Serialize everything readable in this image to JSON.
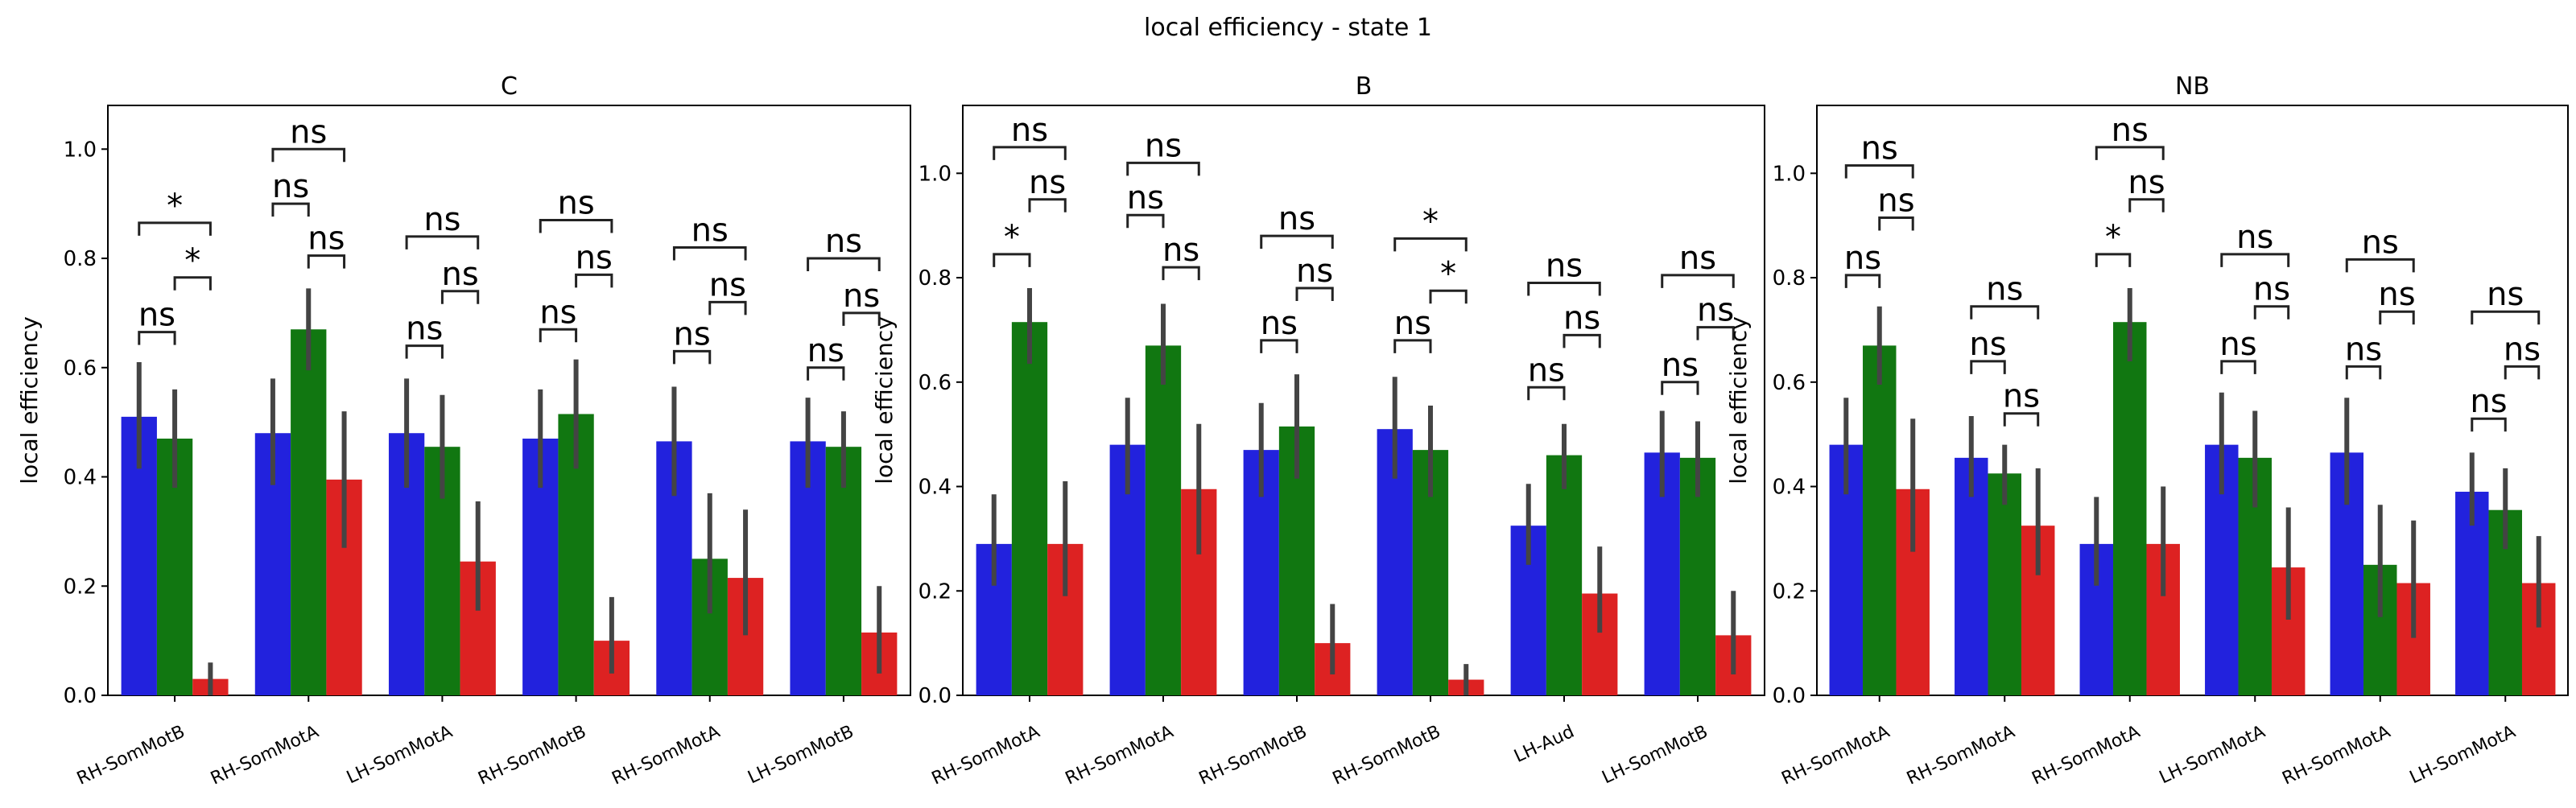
{
  "figure": {
    "title": "local efficiency - state 1"
  },
  "style": {
    "hue_colors": [
      "#2222dd",
      "#117711",
      "#dd2222"
    ],
    "errorbar_color": "#444444",
    "bracket_color": "#222222"
  },
  "chart_data": [
    {
      "type": "bar",
      "title": "C",
      "ylabel": "local efficiency",
      "ylim": [
        0,
        1.08
      ],
      "yticks": [
        0.0,
        0.2,
        0.4,
        0.6,
        0.8,
        1.0
      ],
      "ytick_labels": [
        "0.0",
        "0.2",
        "0.4",
        "0.6",
        "0.8",
        "1.0"
      ],
      "categories": [
        "RH-SomMotB",
        "RH-SomMotA",
        "LH-SomMotA",
        "RH-SomMotB",
        "RH-SomMotA",
        "LH-SomMotB"
      ],
      "values": [
        [
          0.51,
          0.47,
          0.03
        ],
        [
          0.48,
          0.67,
          0.395
        ],
        [
          0.48,
          0.455,
          0.245
        ],
        [
          0.47,
          0.515,
          0.1
        ],
        [
          0.465,
          0.25,
          0.215
        ],
        [
          0.465,
          0.455,
          0.115
        ]
      ],
      "ci_low": [
        [
          0.415,
          0.38,
          0.0
        ],
        [
          0.385,
          0.595,
          0.27
        ],
        [
          0.38,
          0.36,
          0.155
        ],
        [
          0.38,
          0.415,
          0.04
        ],
        [
          0.365,
          0.15,
          0.11
        ],
        [
          0.38,
          0.38,
          0.04
        ]
      ],
      "ci_high": [
        [
          0.61,
          0.56,
          0.06
        ],
        [
          0.58,
          0.745,
          0.52
        ],
        [
          0.58,
          0.55,
          0.355
        ],
        [
          0.56,
          0.615,
          0.18
        ],
        [
          0.565,
          0.37,
          0.34
        ],
        [
          0.545,
          0.52,
          0.2
        ]
      ],
      "annotations": [
        [
          {
            "pair": [
              0,
              1
            ],
            "text": "ns",
            "y": 0.665
          },
          {
            "pair": [
              1,
              2
            ],
            "text": "*",
            "y": 0.765
          },
          {
            "pair": [
              0,
              2
            ],
            "text": "*",
            "y": 0.865
          }
        ],
        [
          {
            "pair": [
              0,
              1
            ],
            "text": "ns",
            "y": 0.9
          },
          {
            "pair": [
              1,
              2
            ],
            "text": "ns",
            "y": 0.805
          },
          {
            "pair": [
              0,
              2
            ],
            "text": "ns",
            "y": 1.0
          }
        ],
        [
          {
            "pair": [
              0,
              1
            ],
            "text": "ns",
            "y": 0.64
          },
          {
            "pair": [
              1,
              2
            ],
            "text": "ns",
            "y": 0.74
          },
          {
            "pair": [
              0,
              2
            ],
            "text": "ns",
            "y": 0.84
          }
        ],
        [
          {
            "pair": [
              0,
              1
            ],
            "text": "ns",
            "y": 0.67
          },
          {
            "pair": [
              1,
              2
            ],
            "text": "ns",
            "y": 0.77
          },
          {
            "pair": [
              0,
              2
            ],
            "text": "ns",
            "y": 0.87
          }
        ],
        [
          {
            "pair": [
              0,
              1
            ],
            "text": "ns",
            "y": 0.63
          },
          {
            "pair": [
              1,
              2
            ],
            "text": "ns",
            "y": 0.72
          },
          {
            "pair": [
              0,
              2
            ],
            "text": "ns",
            "y": 0.82
          }
        ],
        [
          {
            "pair": [
              0,
              1
            ],
            "text": "ns",
            "y": 0.6
          },
          {
            "pair": [
              1,
              2
            ],
            "text": "ns",
            "y": 0.7
          },
          {
            "pair": [
              0,
              2
            ],
            "text": "ns",
            "y": 0.8
          }
        ]
      ]
    },
    {
      "type": "bar",
      "title": "B",
      "ylabel": "local efficiency",
      "ylim": [
        0,
        1.13
      ],
      "yticks": [
        0.0,
        0.2,
        0.4,
        0.6,
        0.8,
        1.0
      ],
      "ytick_labels": [
        "0.0",
        "0.2",
        "0.4",
        "0.6",
        "0.8",
        "1.0"
      ],
      "categories": [
        "RH-SomMotA",
        "RH-SomMotA",
        "RH-SomMotB",
        "RH-SomMotB",
        "LH-Aud",
        "LH-SomMotB"
      ],
      "values": [
        [
          0.29,
          0.715,
          0.29
        ],
        [
          0.48,
          0.67,
          0.395
        ],
        [
          0.47,
          0.515,
          0.1
        ],
        [
          0.51,
          0.47,
          0.03
        ],
        [
          0.325,
          0.46,
          0.195
        ],
        [
          0.465,
          0.455,
          0.115
        ]
      ],
      "ci_low": [
        [
          0.21,
          0.635,
          0.19
        ],
        [
          0.385,
          0.595,
          0.27
        ],
        [
          0.38,
          0.415,
          0.04
        ],
        [
          0.415,
          0.38,
          0.0
        ],
        [
          0.25,
          0.395,
          0.12
        ],
        [
          0.38,
          0.38,
          0.04
        ]
      ],
      "ci_high": [
        [
          0.385,
          0.78,
          0.41
        ],
        [
          0.57,
          0.75,
          0.52
        ],
        [
          0.56,
          0.615,
          0.175
        ],
        [
          0.61,
          0.555,
          0.06
        ],
        [
          0.405,
          0.52,
          0.285
        ],
        [
          0.545,
          0.525,
          0.2
        ]
      ],
      "annotations": [
        [
          {
            "pair": [
              0,
              1
            ],
            "text": "*",
            "y": 0.845
          },
          {
            "pair": [
              1,
              2
            ],
            "text": "ns",
            "y": 0.95
          },
          {
            "pair": [
              0,
              2
            ],
            "text": "ns",
            "y": 1.05
          }
        ],
        [
          {
            "pair": [
              0,
              1
            ],
            "text": "ns",
            "y": 0.92
          },
          {
            "pair": [
              1,
              2
            ],
            "text": "ns",
            "y": 0.82
          },
          {
            "pair": [
              0,
              2
            ],
            "text": "ns",
            "y": 1.02
          }
        ],
        [
          {
            "pair": [
              0,
              1
            ],
            "text": "ns",
            "y": 0.68
          },
          {
            "pair": [
              1,
              2
            ],
            "text": "ns",
            "y": 0.78
          },
          {
            "pair": [
              0,
              2
            ],
            "text": "ns",
            "y": 0.88
          }
        ],
        [
          {
            "pair": [
              0,
              1
            ],
            "text": "ns",
            "y": 0.68
          },
          {
            "pair": [
              1,
              2
            ],
            "text": "*",
            "y": 0.775
          },
          {
            "pair": [
              0,
              2
            ],
            "text": "*",
            "y": 0.875
          }
        ],
        [
          {
            "pair": [
              0,
              1
            ],
            "text": "ns",
            "y": 0.59
          },
          {
            "pair": [
              1,
              2
            ],
            "text": "ns",
            "y": 0.69
          },
          {
            "pair": [
              0,
              2
            ],
            "text": "ns",
            "y": 0.79
          }
        ],
        [
          {
            "pair": [
              0,
              1
            ],
            "text": "ns",
            "y": 0.6
          },
          {
            "pair": [
              1,
              2
            ],
            "text": "ns",
            "y": 0.705
          },
          {
            "pair": [
              0,
              2
            ],
            "text": "ns",
            "y": 0.805
          }
        ]
      ]
    },
    {
      "type": "bar",
      "title": "NB",
      "ylabel": "local efficiency",
      "ylim": [
        0,
        1.13
      ],
      "yticks": [
        0.0,
        0.2,
        0.4,
        0.6,
        0.8,
        1.0
      ],
      "ytick_labels": [
        "0.0",
        "0.2",
        "0.4",
        "0.6",
        "0.8",
        "1.0"
      ],
      "categories": [
        "RH-SomMotA",
        "RH-SomMotA",
        "RH-SomMotA",
        "LH-SomMotA",
        "RH-SomMotA",
        "LH-SomMotA"
      ],
      "values": [
        [
          0.48,
          0.67,
          0.395
        ],
        [
          0.455,
          0.425,
          0.325
        ],
        [
          0.29,
          0.715,
          0.29
        ],
        [
          0.48,
          0.455,
          0.245
        ],
        [
          0.465,
          0.25,
          0.215
        ],
        [
          0.39,
          0.355,
          0.215
        ]
      ],
      "ci_low": [
        [
          0.385,
          0.595,
          0.275
        ],
        [
          0.38,
          0.365,
          0.23
        ],
        [
          0.21,
          0.64,
          0.19
        ],
        [
          0.385,
          0.36,
          0.145
        ],
        [
          0.365,
          0.15,
          0.11
        ],
        [
          0.325,
          0.28,
          0.13
        ]
      ],
      "ci_high": [
        [
          0.57,
          0.745,
          0.53
        ],
        [
          0.535,
          0.48,
          0.435
        ],
        [
          0.38,
          0.78,
          0.4
        ],
        [
          0.58,
          0.545,
          0.36
        ],
        [
          0.57,
          0.365,
          0.335
        ],
        [
          0.465,
          0.435,
          0.305
        ]
      ],
      "annotations": [
        [
          {
            "pair": [
              0,
              1
            ],
            "text": "ns",
            "y": 0.805
          },
          {
            "pair": [
              1,
              2
            ],
            "text": "ns",
            "y": 0.915
          },
          {
            "pair": [
              0,
              2
            ],
            "text": "ns",
            "y": 1.015
          }
        ],
        [
          {
            "pair": [
              0,
              1
            ],
            "text": "ns",
            "y": 0.64
          },
          {
            "pair": [
              1,
              2
            ],
            "text": "ns",
            "y": 0.54
          },
          {
            "pair": [
              0,
              2
            ],
            "text": "ns",
            "y": 0.745
          }
        ],
        [
          {
            "pair": [
              0,
              1
            ],
            "text": "*",
            "y": 0.845
          },
          {
            "pair": [
              1,
              2
            ],
            "text": "ns",
            "y": 0.95
          },
          {
            "pair": [
              0,
              2
            ],
            "text": "ns",
            "y": 1.05
          }
        ],
        [
          {
            "pair": [
              0,
              1
            ],
            "text": "ns",
            "y": 0.64
          },
          {
            "pair": [
              1,
              2
            ],
            "text": "ns",
            "y": 0.745
          },
          {
            "pair": [
              0,
              2
            ],
            "text": "ns",
            "y": 0.845
          }
        ],
        [
          {
            "pair": [
              0,
              1
            ],
            "text": "ns",
            "y": 0.63
          },
          {
            "pair": [
              1,
              2
            ],
            "text": "ns",
            "y": 0.735
          },
          {
            "pair": [
              0,
              2
            ],
            "text": "ns",
            "y": 0.835
          }
        ],
        [
          {
            "pair": [
              0,
              1
            ],
            "text": "ns",
            "y": 0.53
          },
          {
            "pair": [
              1,
              2
            ],
            "text": "ns",
            "y": 0.63
          },
          {
            "pair": [
              0,
              2
            ],
            "text": "ns",
            "y": 0.735
          }
        ]
      ]
    }
  ]
}
